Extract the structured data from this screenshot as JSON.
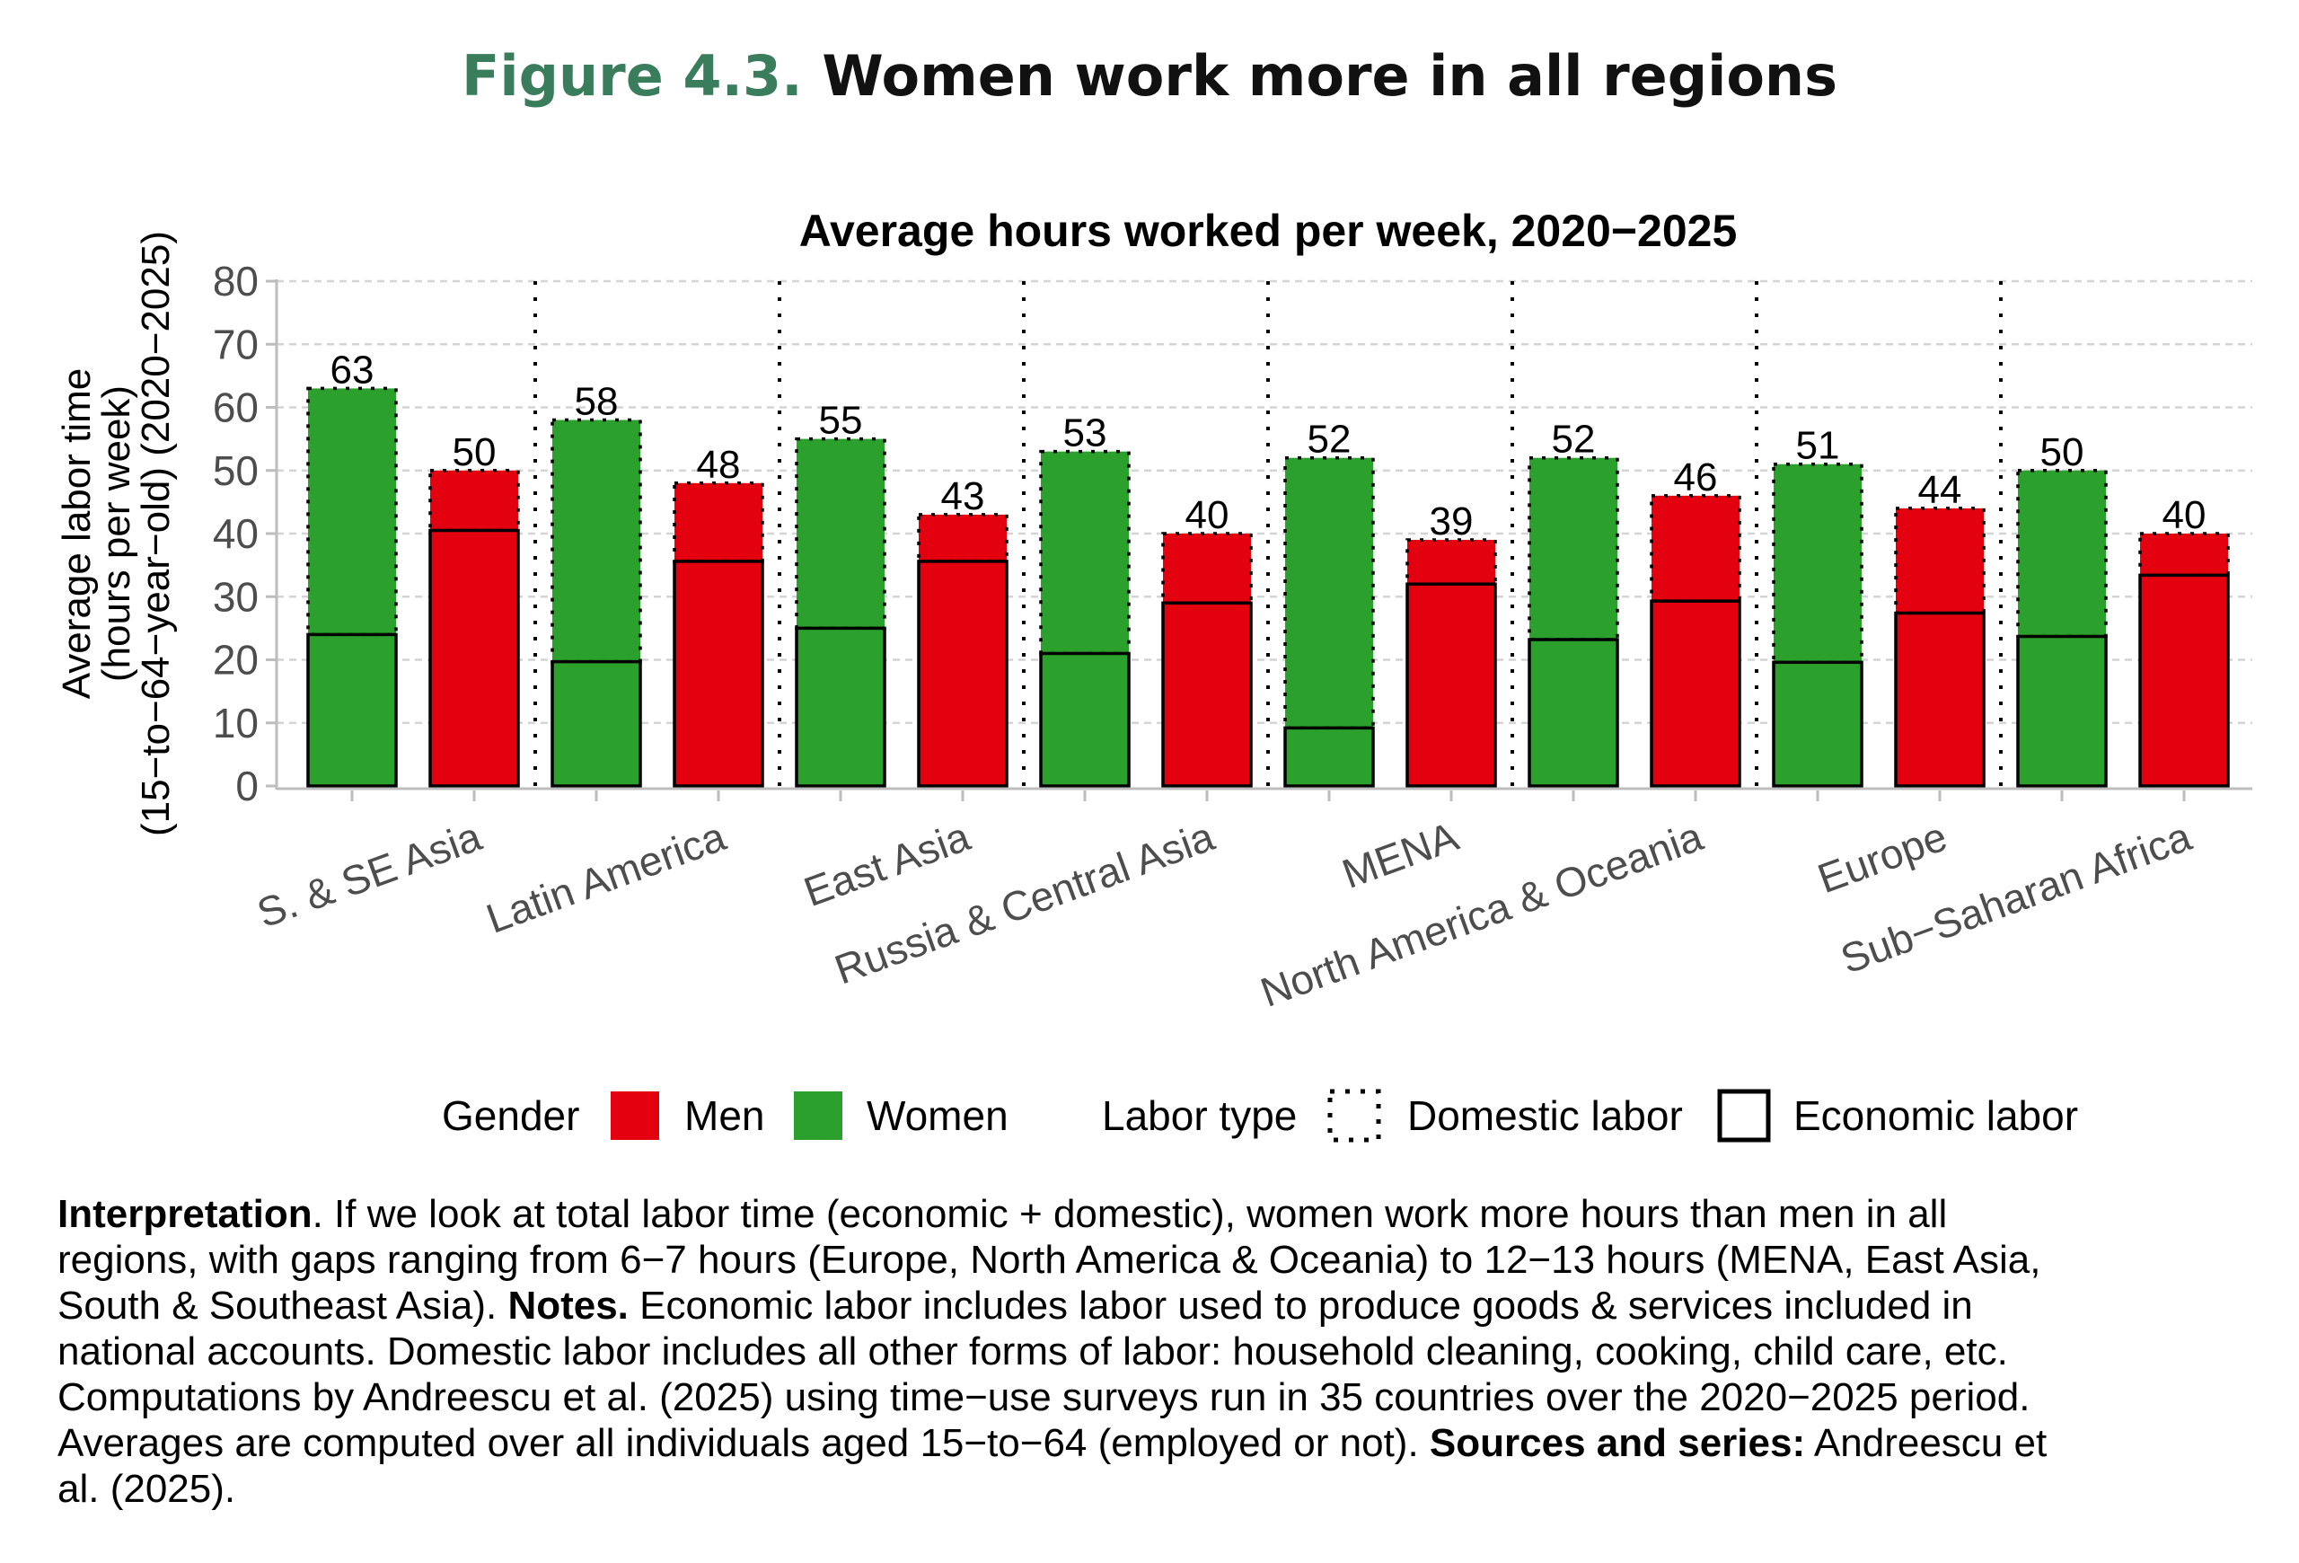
{
  "figure": {
    "number": "Figure 4.3.",
    "title": "Women work more in all regions"
  },
  "colors": {
    "men": "#e3000f",
    "women": "#2ca02c",
    "title_accent": "#3a7d5c"
  },
  "chart_data": {
    "type": "bar",
    "stacked": true,
    "title": "Average hours worked per week, 2020−2025",
    "ylabel": [
      "Average labor time",
      "(hours per week)",
      "(15−to−64−year−old) (2020−2025)"
    ],
    "ylim": [
      0,
      80
    ],
    "yticks": [
      "0",
      "10",
      "20",
      "30",
      "40",
      "50",
      "60",
      "70",
      "80"
    ],
    "grid": true,
    "categories": [
      "S. & SE Asia",
      "Latin America",
      "East Asia",
      "Russia & Central Asia",
      "MENA",
      "North America & Oceania",
      "Europe",
      "Sub−Saharan Africa"
    ],
    "series": [
      {
        "gender": "Women",
        "economic": [
          24.0,
          19.7,
          25.0,
          21.0,
          9.2,
          23.2,
          19.6,
          23.7
        ],
        "total": [
          63,
          58,
          55,
          53,
          52,
          52,
          51,
          50
        ]
      },
      {
        "gender": "Men",
        "economic": [
          40.5,
          35.6,
          35.6,
          29.0,
          32.0,
          29.3,
          27.4,
          33.4
        ],
        "total": [
          50,
          48,
          43,
          40,
          39,
          46,
          44,
          40
        ]
      }
    ],
    "legend": {
      "position": "bottom",
      "gender_title": "Gender",
      "gender_items": [
        "Men",
        "Women"
      ],
      "labor_title": "Labor type",
      "labor_items": [
        "Domestic labor",
        "Economic labor"
      ]
    }
  },
  "notes": {
    "lines": [
      [
        {
          "t": "Interpretation",
          "b": true
        },
        {
          "t": ". If we look at total labor time (economic + domestic), women work more hours than men in all",
          "b": false
        }
      ],
      [
        {
          "t": "regions, with gaps ranging from 6−7 hours (Europe, North America & Oceania) to 12−13 hours (MENA, East Asia,",
          "b": false
        }
      ],
      [
        {
          "t": "South & Southeast Asia). ",
          "b": false
        },
        {
          "t": "Notes.",
          "b": true
        },
        {
          "t": " Economic labor includes labor used to produce goods & services included in",
          "b": false
        }
      ],
      [
        {
          "t": "national accounts. Domestic labor includes all other forms of labor: household cleaning, cooking, child care, etc.",
          "b": false
        }
      ],
      [
        {
          "t": "Computations by Andreescu et al. (2025) using time−use surveys run in 35 countries over the 2020−2025 period.",
          "b": false
        }
      ],
      [
        {
          "t": "Averages are computed over all individuals aged 15−to−64 (employed or not). ",
          "b": false
        },
        {
          "t": "Sources and series:",
          "b": true
        },
        {
          "t": " Andreescu et",
          "b": false
        }
      ],
      [
        {
          "t": "al. (2025).",
          "b": false
        }
      ]
    ]
  }
}
